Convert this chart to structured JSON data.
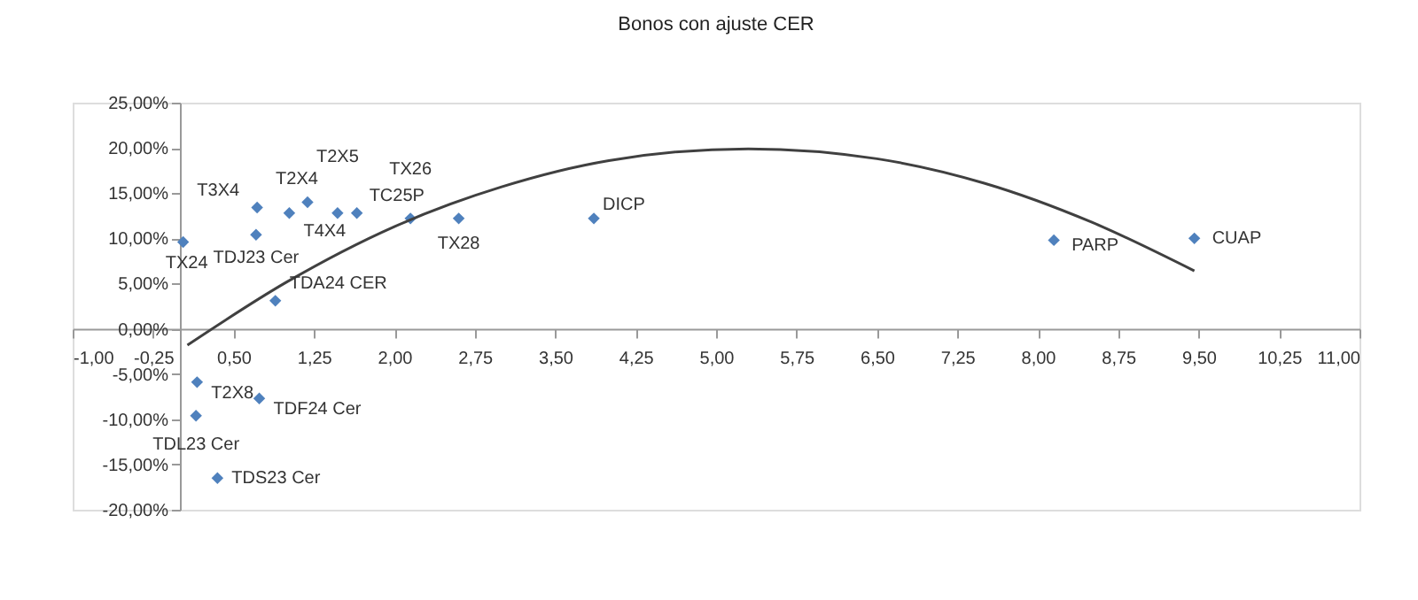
{
  "chart_data": {
    "type": "scatter",
    "title": "Bonos con ajuste CER",
    "series": [
      {
        "color": "#4f81bd",
        "marker": "diamond",
        "x": [
          0.03,
          0.71,
          0.72,
          1.02,
          1.19,
          1.47,
          1.65,
          2.15,
          2.6,
          0.89,
          0.16,
          0.74,
          0.15,
          0.35,
          3.86,
          8.15,
          9.46
        ],
        "values": [
          9.6,
          10.4,
          13.4,
          12.8,
          14.0,
          12.8,
          12.8,
          12.2,
          12.2,
          3.1,
          -5.9,
          -7.7,
          -9.6,
          -16.5,
          12.2,
          9.8,
          10.0
        ]
      },
      {
        "type": "line",
        "color": "#404040",
        "marker": "none",
        "x": [
          0.07,
          1,
          2,
          3,
          4,
          5.3,
          6.5,
          7.5,
          8.5,
          9.46
        ],
        "values": [
          -1.8,
          5.2,
          11.3,
          15.7,
          18.6,
          19.9,
          18.8,
          16.1,
          11.8,
          6.4
        ]
      }
    ],
    "annotations": [
      {
        "text": "TX24",
        "x": 0.03,
        "y": 9.6
      },
      {
        "text": "TDJ23 Cer",
        "x": 0.71,
        "y": 10.4
      },
      {
        "text": "T3X4",
        "x": 0.72,
        "y": 13.4
      },
      {
        "text": "T4X4",
        "x": 1.02,
        "y": 12.8
      },
      {
        "text": "T2X4",
        "x": 1.19,
        "y": 14.0
      },
      {
        "text": "T2X5",
        "x": 1.47,
        "y": 12.8
      },
      {
        "text": "TC25P",
        "x": 1.65,
        "y": 12.8
      },
      {
        "text": "TX26",
        "x": 2.15,
        "y": 12.2
      },
      {
        "text": "TX28",
        "x": 2.6,
        "y": 12.2
      },
      {
        "text": "TDA24 CER",
        "x": 0.89,
        "y": 3.1
      },
      {
        "text": "T2X8",
        "x": 0.16,
        "y": -5.9
      },
      {
        "text": "TDF24 Cer",
        "x": 0.74,
        "y": -7.7
      },
      {
        "text": "TDL23 Cer",
        "x": 0.15,
        "y": -9.6
      },
      {
        "text": "TDS23 Cer",
        "x": 0.35,
        "y": -16.5
      },
      {
        "text": "DICP",
        "x": 3.86,
        "y": 12.2
      },
      {
        "text": "PARP",
        "x": 8.15,
        "y": 9.8
      },
      {
        "text": "CUAP",
        "x": 9.46,
        "y": 10.0
      }
    ],
    "xlim": [
      -1,
      11
    ],
    "xticks": [
      {
        "value": -1,
        "label": "-1,00"
      },
      {
        "value": -0.25,
        "label": "-0,25"
      },
      {
        "value": 0.5,
        "label": "0,50"
      },
      {
        "value": 1.25,
        "label": "1,25"
      },
      {
        "value": 2,
        "label": "2,00"
      },
      {
        "value": 2.75,
        "label": "2,75"
      },
      {
        "value": 3.5,
        "label": "3,50"
      },
      {
        "value": 4.25,
        "label": "4,25"
      },
      {
        "value": 5,
        "label": "5,00"
      },
      {
        "value": 5.75,
        "label": "5,75"
      },
      {
        "value": 6.5,
        "label": "6,50"
      },
      {
        "value": 7.25,
        "label": "7,25"
      },
      {
        "value": 8,
        "label": "8,00"
      },
      {
        "value": 8.75,
        "label": "8,75"
      },
      {
        "value": 9.5,
        "label": "9,50"
      },
      {
        "value": 10.25,
        "label": "10,25"
      },
      {
        "value": 11,
        "label": "11,00"
      }
    ],
    "ylim": [
      -20,
      25
    ],
    "yticks": [
      {
        "value": -20,
        "label": "-20,00%"
      },
      {
        "value": -15,
        "label": "-15,00%"
      },
      {
        "value": -10,
        "label": "-10,00%"
      },
      {
        "value": -5,
        "label": "-5,00%"
      },
      {
        "value": 0,
        "label": "0,00%"
      },
      {
        "value": 5,
        "label": "5,00%"
      },
      {
        "value": 10,
        "label": "10,00%"
      },
      {
        "value": 15,
        "label": "15,00%"
      },
      {
        "value": 20,
        "label": "20,00%"
      },
      {
        "value": 25,
        "label": "25,00%"
      }
    ],
    "grid": false
  }
}
